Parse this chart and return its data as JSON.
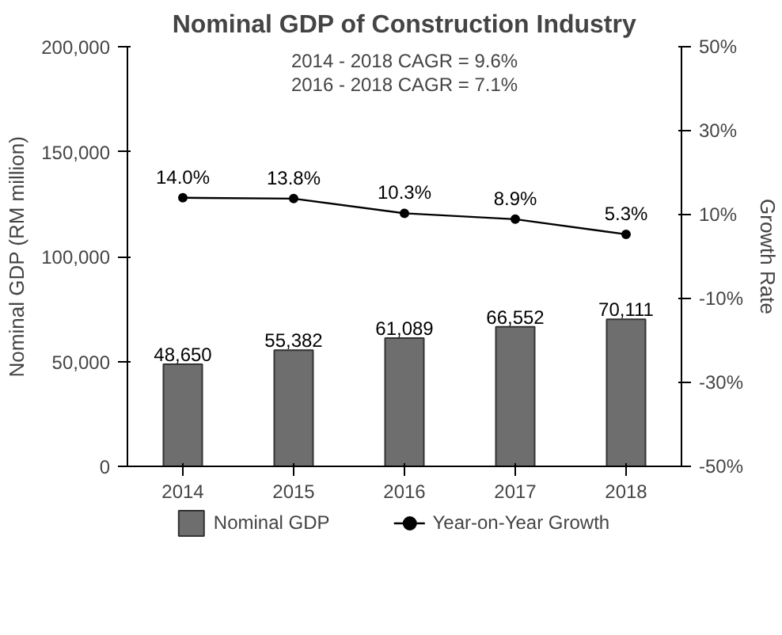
{
  "chart_data": {
    "type": "bar",
    "title": "Nominal GDP of Construction Industry",
    "ylabel": "Nominal GDP (RM million)",
    "y2label": "Growth Rate",
    "categories": [
      "2014",
      "2015",
      "2016",
      "2017",
      "2018"
    ],
    "series": [
      {
        "name": "Nominal GDP",
        "color": "#6e6e6e",
        "values": [
          48650,
          55382,
          61089,
          66552,
          70111
        ],
        "value_labels": [
          "48,650",
          "55,382",
          "61,089",
          "66,552",
          "70,111"
        ]
      },
      {
        "name": "Year-on-Year Growth",
        "type": "line",
        "axis": "y2",
        "color": "#000000",
        "values": [
          14.0,
          13.8,
          10.3,
          8.9,
          5.3
        ],
        "value_labels": [
          "14.0%",
          "13.8%",
          "10.3%",
          "8.9%",
          "5.3%"
        ],
        "marker": "circle"
      }
    ],
    "ylim": [
      0,
      200000
    ],
    "yticks": [
      {
        "value": 0,
        "label": "0"
      },
      {
        "value": 50000,
        "label": "50,000"
      },
      {
        "value": 100000,
        "label": "100,000"
      },
      {
        "value": 150000,
        "label": "150,000"
      },
      {
        "value": 200000,
        "label": "200,000"
      }
    ],
    "y2lim": [
      -50,
      50
    ],
    "y2ticks": [
      {
        "value": -50,
        "label": "-50%"
      },
      {
        "value": -30,
        "label": "-30%"
      },
      {
        "value": -10,
        "label": "-10%"
      },
      {
        "value": 10,
        "label": "10%"
      },
      {
        "value": 30,
        "label": "30%"
      },
      {
        "value": 50,
        "label": "50%"
      }
    ],
    "annotations": [
      "2014 - 2018 CAGR = 9.6%",
      "2016 - 2018 CAGR = 7.1%"
    ],
    "legend": "bottom",
    "grid": false
  }
}
